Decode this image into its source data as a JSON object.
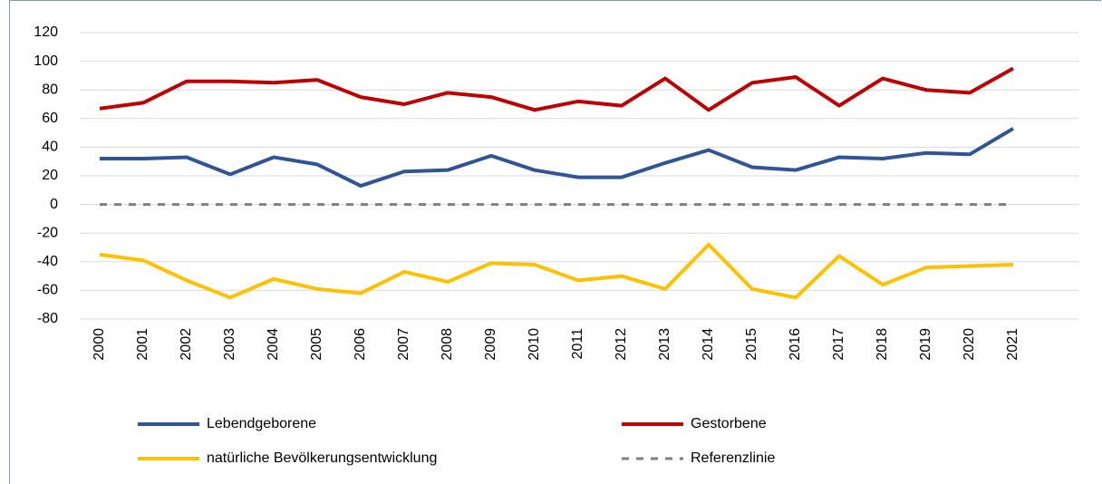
{
  "chart_data": {
    "type": "line",
    "categories": [
      "2000",
      "2001",
      "2002",
      "2003",
      "2004",
      "2005",
      "2006",
      "2007",
      "2008",
      "2009",
      "2010",
      "2011",
      "2012",
      "2013",
      "2014",
      "2015",
      "2016",
      "2017",
      "2018",
      "2019",
      "2020",
      "2021"
    ],
    "series": [
      {
        "name": "Lebendgeborene",
        "color": "#2f5597",
        "values": [
          32,
          32,
          33,
          21,
          33,
          28,
          13,
          23,
          24,
          34,
          24,
          19,
          19,
          29,
          38,
          26,
          24,
          33,
          32,
          36,
          35,
          53
        ]
      },
      {
        "name": "Gestorbene",
        "color": "#c00000",
        "values": [
          67,
          71,
          86,
          86,
          85,
          87,
          75,
          70,
          78,
          75,
          66,
          72,
          69,
          88,
          66,
          85,
          89,
          69,
          88,
          80,
          78,
          95
        ]
      },
      {
        "name": "natürliche Bevölkerungsentwicklung",
        "color": "#ffc000",
        "values": [
          -35,
          -39,
          -53,
          -65,
          -52,
          -59,
          -62,
          -47,
          -54,
          -41,
          -42,
          -53,
          -50,
          -59,
          -28,
          -59,
          -65,
          -36,
          -56,
          -44,
          -43,
          -42
        ]
      },
      {
        "name": "Referenzlinie",
        "color": "#808080",
        "dashed": true,
        "values": [
          0,
          0,
          0,
          0,
          0,
          0,
          0,
          0,
          0,
          0,
          0,
          0,
          0,
          0,
          0,
          0,
          0,
          0,
          0,
          0,
          0,
          0
        ]
      }
    ],
    "ylim": [
      -80,
      120
    ],
    "yticks": [
      -80,
      -60,
      -40,
      -20,
      0,
      20,
      40,
      60,
      80,
      100,
      120
    ],
    "grid": true
  }
}
